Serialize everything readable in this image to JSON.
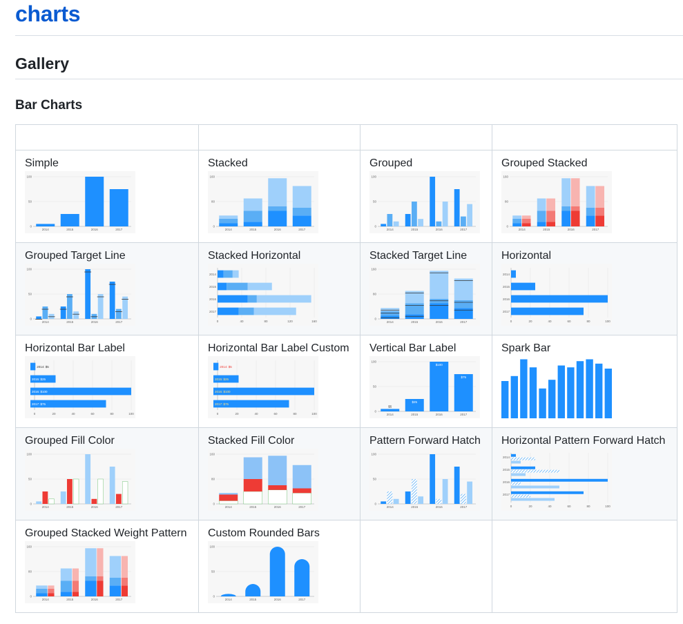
{
  "site": {
    "title": "charts"
  },
  "headings": {
    "gallery": "Gallery",
    "section": "Bar Charts"
  },
  "colors": {
    "blue": "#1e90ff",
    "light_blue": "#9fd0fb",
    "mid_blue": "#5aaef5",
    "red": "#ee3b35",
    "light_red": "#f8b4b0",
    "green": "#76c47a",
    "axis": "#9aa0a6",
    "panel": "#f7f7f7"
  },
  "header_row": [
    "",
    "",
    "",
    ""
  ],
  "rows": [
    [
      "Simple",
      "Stacked",
      "Grouped",
      "Grouped Stacked"
    ],
    [
      "Grouped Target Line",
      "Stacked Horizontal",
      "Stacked Target Line",
      "Horizontal"
    ],
    [
      "Horizontal Bar Label",
      "Horizontal Bar Label Custom",
      "Vertical Bar Label",
      "Spark Bar"
    ],
    [
      "Grouped Fill Color",
      "Stacked Fill Color",
      "Pattern Forward Hatch",
      "Horizontal Pattern Forward Hatch"
    ],
    [
      "Grouped Stacked Weight Pattern",
      "Custom Rounded Bars",
      "",
      ""
    ]
  ],
  "charts": {
    "years": [
      "2014",
      "2015",
      "2016",
      "2017"
    ],
    "ticks100": [
      "0",
      "50",
      "100"
    ],
    "ticks160": [
      "0",
      "80",
      "160"
    ],
    "hticks100": [
      "0",
      "20",
      "40",
      "60",
      "80",
      "100"
    ],
    "hticks160": [
      "0",
      "40",
      "80",
      "120",
      "160"
    ],
    "simple": [
      5,
      25,
      100,
      75
    ],
    "stacked": [
      [
        10,
        15,
        10
      ],
      [
        15,
        35,
        40
      ],
      [
        50,
        15,
        90
      ],
      [
        35,
        25,
        70
      ]
    ],
    "grouped": [
      [
        5,
        25,
        10
      ],
      [
        25,
        50,
        15
      ],
      [
        100,
        10,
        50
      ],
      [
        75,
        20,
        45
      ]
    ],
    "labels_h": [
      "2014: $5",
      "2015: $25",
      "2016: $100",
      "2017: $75"
    ],
    "labels_v": [
      "$5",
      "$25",
      "$100",
      "$75"
    ],
    "spark": [
      60,
      68,
      95,
      82,
      48,
      62,
      85,
      82,
      92,
      95,
      88,
      80
    ]
  }
}
